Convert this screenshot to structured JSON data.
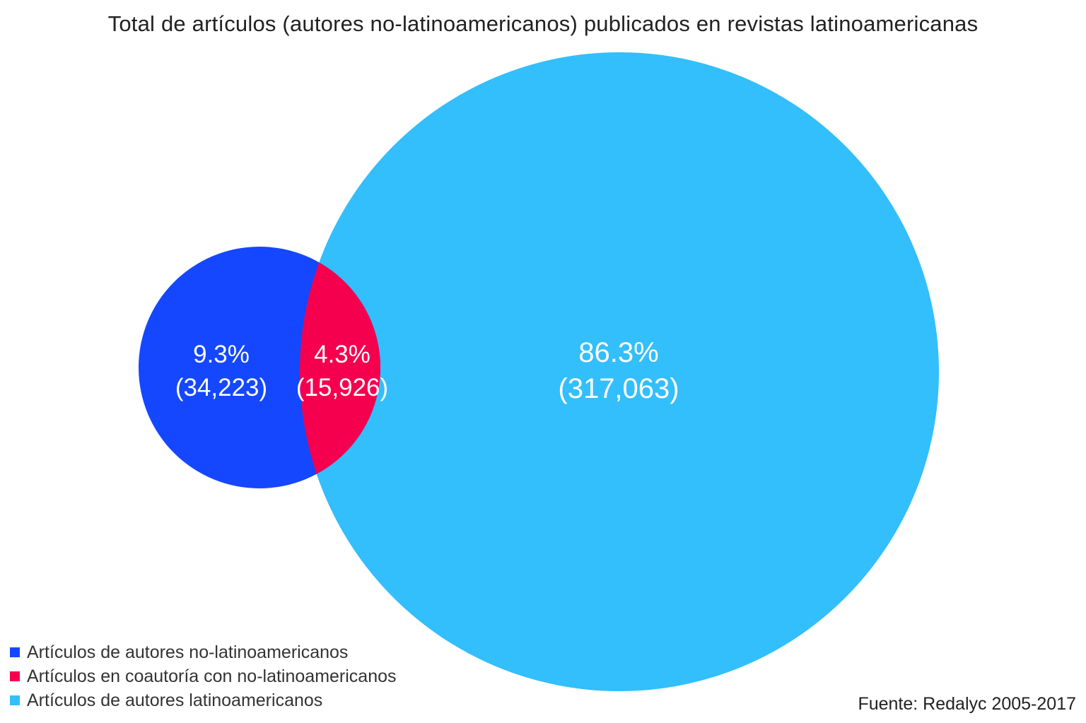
{
  "chart_data": {
    "type": "venn",
    "title": "Total de artículos (autores no-latinoamericanos) publicados en revistas latinoamericanas",
    "sets": [
      {
        "name": "Artículos de autores no-latinoamericanos",
        "percent_label": "9.3%",
        "count_label": "(34,223)",
        "percent": 9.3,
        "count": 34223,
        "color": "#1447FF"
      },
      {
        "name": "Artículos en coautoría con no-latinoamericanos",
        "percent_label": "4.3%",
        "count_label": "(15,926)",
        "percent": 4.3,
        "count": 15926,
        "color": "#F5004F"
      },
      {
        "name": "Artículos de autores latinoamericanos",
        "percent_label": "86.3%",
        "count_label": "(317,063)",
        "percent": 86.3,
        "count": 317063,
        "color": "#33BEFC"
      }
    ],
    "legend_position": "bottom-left",
    "source": "Fuente: Redalyc 2005-2017"
  }
}
